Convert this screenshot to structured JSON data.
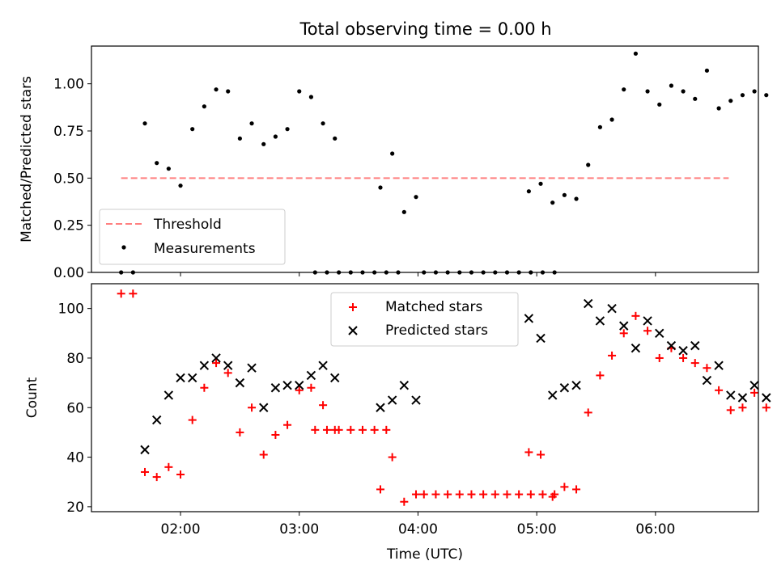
{
  "chart_data": [
    {
      "type": "scatter",
      "title": "Total observing time = 0.00 h",
      "xlabel": "",
      "ylabel": "Matched/Predicted stars",
      "xlim": [
        "01:15",
        "06:52"
      ],
      "ylim": [
        0,
        1.2
      ],
      "yticks": [
        "0.00",
        "0.25",
        "0.50",
        "0.75",
        "1.00"
      ],
      "legend": "lower-left",
      "series": [
        {
          "name": "Threshold",
          "kind": "dashed-line",
          "color": "#ff7f7f",
          "x": [
            "01:30",
            "06:37"
          ],
          "y": [
            0.5,
            0.5
          ]
        },
        {
          "name": "Measurements",
          "kind": "points",
          "color": "#000000",
          "points": [
            [
              "01:30",
              0
            ],
            [
              "01:36",
              0
            ],
            [
              "01:42",
              0.79
            ],
            [
              "01:48",
              0.58
            ],
            [
              "01:54",
              0.55
            ],
            [
              "02:00",
              0.46
            ],
            [
              "02:06",
              0.76
            ],
            [
              "02:12",
              0.88
            ],
            [
              "02:18",
              0.97
            ],
            [
              "02:24",
              0.96
            ],
            [
              "02:30",
              0.71
            ],
            [
              "02:36",
              0.79
            ],
            [
              "02:42",
              0.68
            ],
            [
              "02:48",
              0.72
            ],
            [
              "02:54",
              0.76
            ],
            [
              "03:00",
              0.96
            ],
            [
              "03:06",
              0.93
            ],
            [
              "03:12",
              0.79
            ],
            [
              "03:18",
              0.71
            ],
            [
              "03:08",
              0
            ],
            [
              "03:14",
              0
            ],
            [
              "03:20",
              0
            ],
            [
              "03:26",
              0
            ],
            [
              "03:32",
              0
            ],
            [
              "03:38",
              0
            ],
            [
              "03:44",
              0
            ],
            [
              "03:50",
              0
            ],
            [
              "03:41",
              0.45
            ],
            [
              "03:47",
              0.63
            ],
            [
              "03:53",
              0.32
            ],
            [
              "03:59",
              0.4
            ],
            [
              "04:03",
              0
            ],
            [
              "04:09",
              0
            ],
            [
              "04:15",
              0
            ],
            [
              "04:21",
              0
            ],
            [
              "04:27",
              0
            ],
            [
              "04:33",
              0
            ],
            [
              "04:39",
              0
            ],
            [
              "04:45",
              0
            ],
            [
              "04:51",
              0
            ],
            [
              "04:57",
              0
            ],
            [
              "05:03",
              0
            ],
            [
              "05:09",
              0
            ],
            [
              "04:56",
              0.43
            ],
            [
              "05:02",
              0.47
            ],
            [
              "05:08",
              0.37
            ],
            [
              "05:14",
              0.41
            ],
            [
              "05:20",
              0.39
            ],
            [
              "05:26",
              0.57
            ],
            [
              "05:32",
              0.77
            ],
            [
              "05:38",
              0.81
            ],
            [
              "05:44",
              0.97
            ],
            [
              "05:50",
              1.16
            ],
            [
              "05:56",
              0.96
            ],
            [
              "06:02",
              0.89
            ],
            [
              "06:08",
              0.99
            ],
            [
              "06:14",
              0.96
            ],
            [
              "06:20",
              0.92
            ],
            [
              "06:26",
              1.07
            ],
            [
              "06:32",
              0.87
            ],
            [
              "06:38",
              0.91
            ],
            [
              "06:44",
              0.94
            ],
            [
              "06:50",
              0.96
            ],
            [
              "06:56",
              0.94
            ]
          ]
        }
      ]
    },
    {
      "type": "scatter",
      "title": "",
      "xlabel": "Time (UTC)",
      "ylabel": "Count",
      "xlim": [
        "01:15",
        "06:52"
      ],
      "ylim": [
        18,
        110
      ],
      "xticks": [
        "02:00",
        "03:00",
        "04:00",
        "05:00",
        "06:00"
      ],
      "yticks": [
        "20",
        "40",
        "60",
        "80",
        "100"
      ],
      "legend": "upper-center",
      "series": [
        {
          "name": "Matched stars",
          "kind": "plus",
          "color": "#ff0000",
          "points": [
            [
              "01:30",
              106
            ],
            [
              "01:36",
              106
            ],
            [
              "01:42",
              34
            ],
            [
              "01:48",
              32
            ],
            [
              "01:54",
              36
            ],
            [
              "02:00",
              33
            ],
            [
              "02:06",
              55
            ],
            [
              "02:12",
              68
            ],
            [
              "02:18",
              78
            ],
            [
              "02:24",
              74
            ],
            [
              "02:30",
              50
            ],
            [
              "02:36",
              60
            ],
            [
              "02:42",
              41
            ],
            [
              "02:48",
              49
            ],
            [
              "02:54",
              53
            ],
            [
              "03:00",
              67
            ],
            [
              "03:06",
              68
            ],
            [
              "03:12",
              61
            ],
            [
              "03:18",
              51
            ],
            [
              "03:08",
              51
            ],
            [
              "03:14",
              51
            ],
            [
              "03:20",
              51
            ],
            [
              "03:26",
              51
            ],
            [
              "03:32",
              51
            ],
            [
              "03:38",
              51
            ],
            [
              "03:44",
              51
            ],
            [
              "03:41",
              27
            ],
            [
              "03:47",
              40
            ],
            [
              "03:53",
              22
            ],
            [
              "03:59",
              25
            ],
            [
              "04:03",
              25
            ],
            [
              "04:09",
              25
            ],
            [
              "04:15",
              25
            ],
            [
              "04:21",
              25
            ],
            [
              "04:27",
              25
            ],
            [
              "04:33",
              25
            ],
            [
              "04:39",
              25
            ],
            [
              "04:45",
              25
            ],
            [
              "04:51",
              25
            ],
            [
              "04:57",
              25
            ],
            [
              "05:03",
              25
            ],
            [
              "05:09",
              25
            ],
            [
              "04:56",
              42
            ],
            [
              "05:02",
              41
            ],
            [
              "05:08",
              24
            ],
            [
              "05:14",
              28
            ],
            [
              "05:20",
              27
            ],
            [
              "05:26",
              58
            ],
            [
              "05:32",
              73
            ],
            [
              "05:38",
              81
            ],
            [
              "05:44",
              90
            ],
            [
              "05:50",
              97
            ],
            [
              "05:56",
              91
            ],
            [
              "06:02",
              80
            ],
            [
              "06:08",
              84
            ],
            [
              "06:14",
              80
            ],
            [
              "06:20",
              78
            ],
            [
              "06:26",
              76
            ],
            [
              "06:32",
              67
            ],
            [
              "06:38",
              59
            ],
            [
              "06:44",
              60
            ],
            [
              "06:50",
              66
            ],
            [
              "06:56",
              60
            ]
          ]
        },
        {
          "name": "Predicted stars",
          "kind": "x",
          "color": "#000000",
          "points": [
            [
              "01:42",
              43
            ],
            [
              "01:48",
              55
            ],
            [
              "01:54",
              65
            ],
            [
              "02:00",
              72
            ],
            [
              "02:06",
              72
            ],
            [
              "02:12",
              77
            ],
            [
              "02:18",
              80
            ],
            [
              "02:24",
              77
            ],
            [
              "02:30",
              70
            ],
            [
              "02:36",
              76
            ],
            [
              "02:42",
              60
            ],
            [
              "02:48",
              68
            ],
            [
              "02:54",
              69
            ],
            [
              "03:00",
              69
            ],
            [
              "03:06",
              73
            ],
            [
              "03:12",
              77
            ],
            [
              "03:18",
              72
            ],
            [
              "03:41",
              60
            ],
            [
              "03:47",
              63
            ],
            [
              "03:53",
              69
            ],
            [
              "03:59",
              63
            ],
            [
              "04:56",
              96
            ],
            [
              "05:02",
              88
            ],
            [
              "05:08",
              65
            ],
            [
              "05:14",
              68
            ],
            [
              "05:20",
              69
            ],
            [
              "05:26",
              102
            ],
            [
              "05:32",
              95
            ],
            [
              "05:38",
              100
            ],
            [
              "05:44",
              93
            ],
            [
              "05:50",
              84
            ],
            [
              "05:56",
              95
            ],
            [
              "06:02",
              90
            ],
            [
              "06:08",
              85
            ],
            [
              "06:14",
              83
            ],
            [
              "06:20",
              85
            ],
            [
              "06:26",
              71
            ],
            [
              "06:32",
              77
            ],
            [
              "06:38",
              65
            ],
            [
              "06:44",
              64
            ],
            [
              "06:50",
              69
            ],
            [
              "06:56",
              64
            ]
          ]
        }
      ]
    }
  ]
}
